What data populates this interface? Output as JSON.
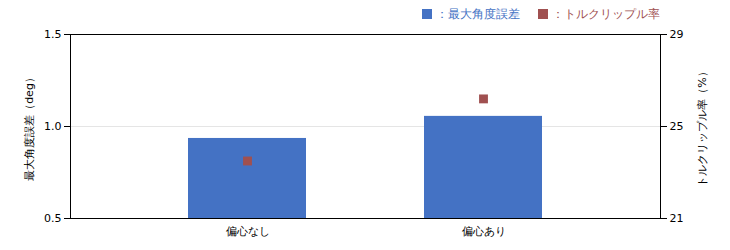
{
  "chart_data": {
    "type": "bar",
    "categories": [
      "偏心なし",
      "偏心あり"
    ],
    "series": [
      {
        "name": "：最大角度誤差",
        "type": "bar",
        "color": "#4472c4",
        "values": [
          0.935,
          1.055
        ]
      },
      {
        "name": "：トルクリップル率",
        "type": "scatter",
        "marker": "square",
        "color": "#a05050",
        "axis": "y2",
        "values": [
          23.5,
          26.2
        ]
      }
    ],
    "ylabel": "最大角度誤差（deg）",
    "y2label": "トルクリップル率（%）",
    "ylim": [
      0.5,
      1.5
    ],
    "yticks": [
      0.5,
      {
        "value": 1,
        "label": "1.0"
      },
      1.5
    ],
    "y2lim": [
      21,
      29
    ],
    "y2ticks": [
      21,
      25,
      29
    ],
    "grid": true,
    "legend": "top right"
  }
}
